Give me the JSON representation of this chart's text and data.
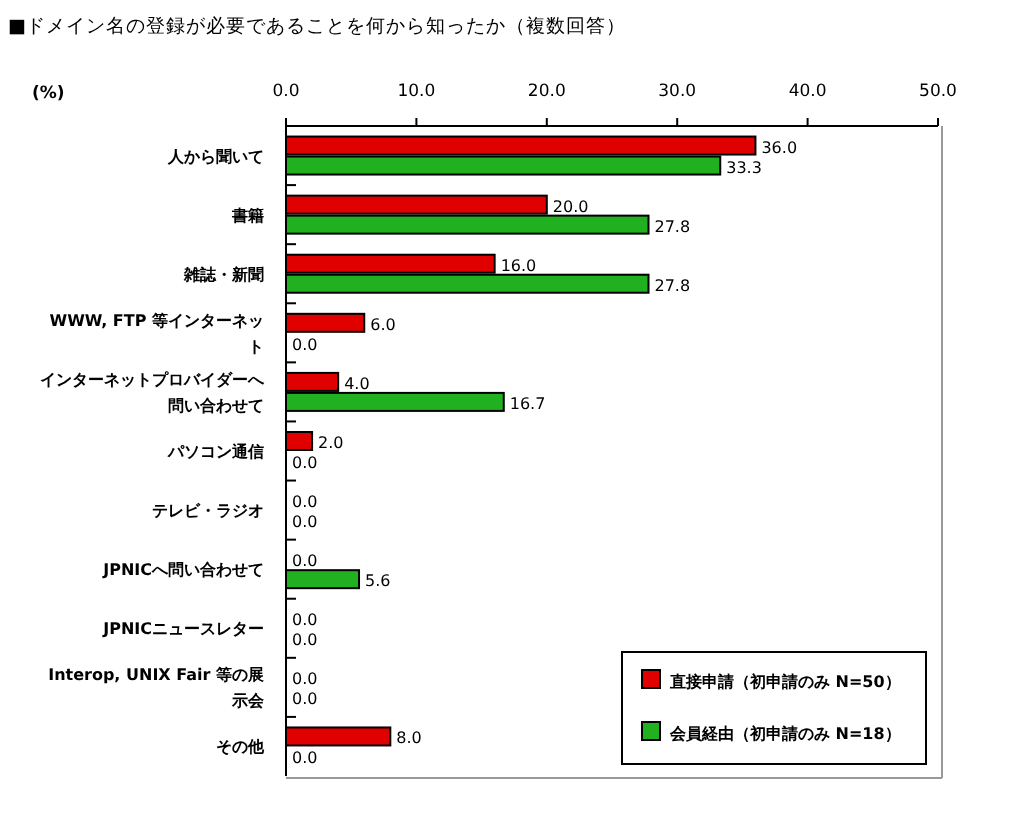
{
  "chart_data": {
    "type": "bar",
    "orientation": "horizontal",
    "title": "■ドメイン名の登録が必要であることを何から知ったか（複数回答）",
    "xlabel": "(%)",
    "categories": [
      "人から聞いて",
      "書籍",
      "雑誌・新聞",
      "WWW, FTP 等インターネット",
      "インターネットプロバイダーへ問い合わせて",
      "パソコン通信",
      "テレビ・ラジオ",
      "JPNICへ問い合わせて",
      "JPNICニュースレター",
      "Interop, UNIX Fair 等の展示会",
      "その他"
    ],
    "series": [
      {
        "name": "直接申請（初申請のみ N=50）",
        "color": "#e00000",
        "values": [
          36.0,
          20.0,
          16.0,
          6.0,
          4.0,
          2.0,
          0.0,
          0.0,
          0.0,
          0.0,
          8.0
        ],
        "value_labels": [
          "36.0",
          "20.0",
          "16.0",
          "6.0",
          "4.0",
          "2.0",
          "0.0",
          "0.0",
          "0.0",
          "0.0",
          "8.0"
        ]
      },
      {
        "name": "会員経由（初申請のみ N=18）",
        "color": "#20b020",
        "values": [
          33.3,
          27.8,
          27.8,
          0.0,
          16.7,
          0.0,
          0.0,
          5.6,
          0.0,
          0.0,
          0.0
        ],
        "value_labels": [
          "33.3",
          "27.8",
          "27.8",
          "0.0",
          "16.7",
          "0.0",
          "0.0",
          "5.6",
          "0.0",
          "0.0",
          "0.0"
        ]
      }
    ],
    "xlim": [
      0,
      50
    ],
    "xticks": [
      {
        "value": 0,
        "label": "0.0"
      },
      {
        "value": 10,
        "label": "10.0"
      },
      {
        "value": 20,
        "label": "20.0"
      },
      {
        "value": 30,
        "label": "30.0"
      },
      {
        "value": 40,
        "label": "40.0"
      },
      {
        "value": 50,
        "label": "50.0"
      }
    ],
    "legend": "bottom right"
  }
}
